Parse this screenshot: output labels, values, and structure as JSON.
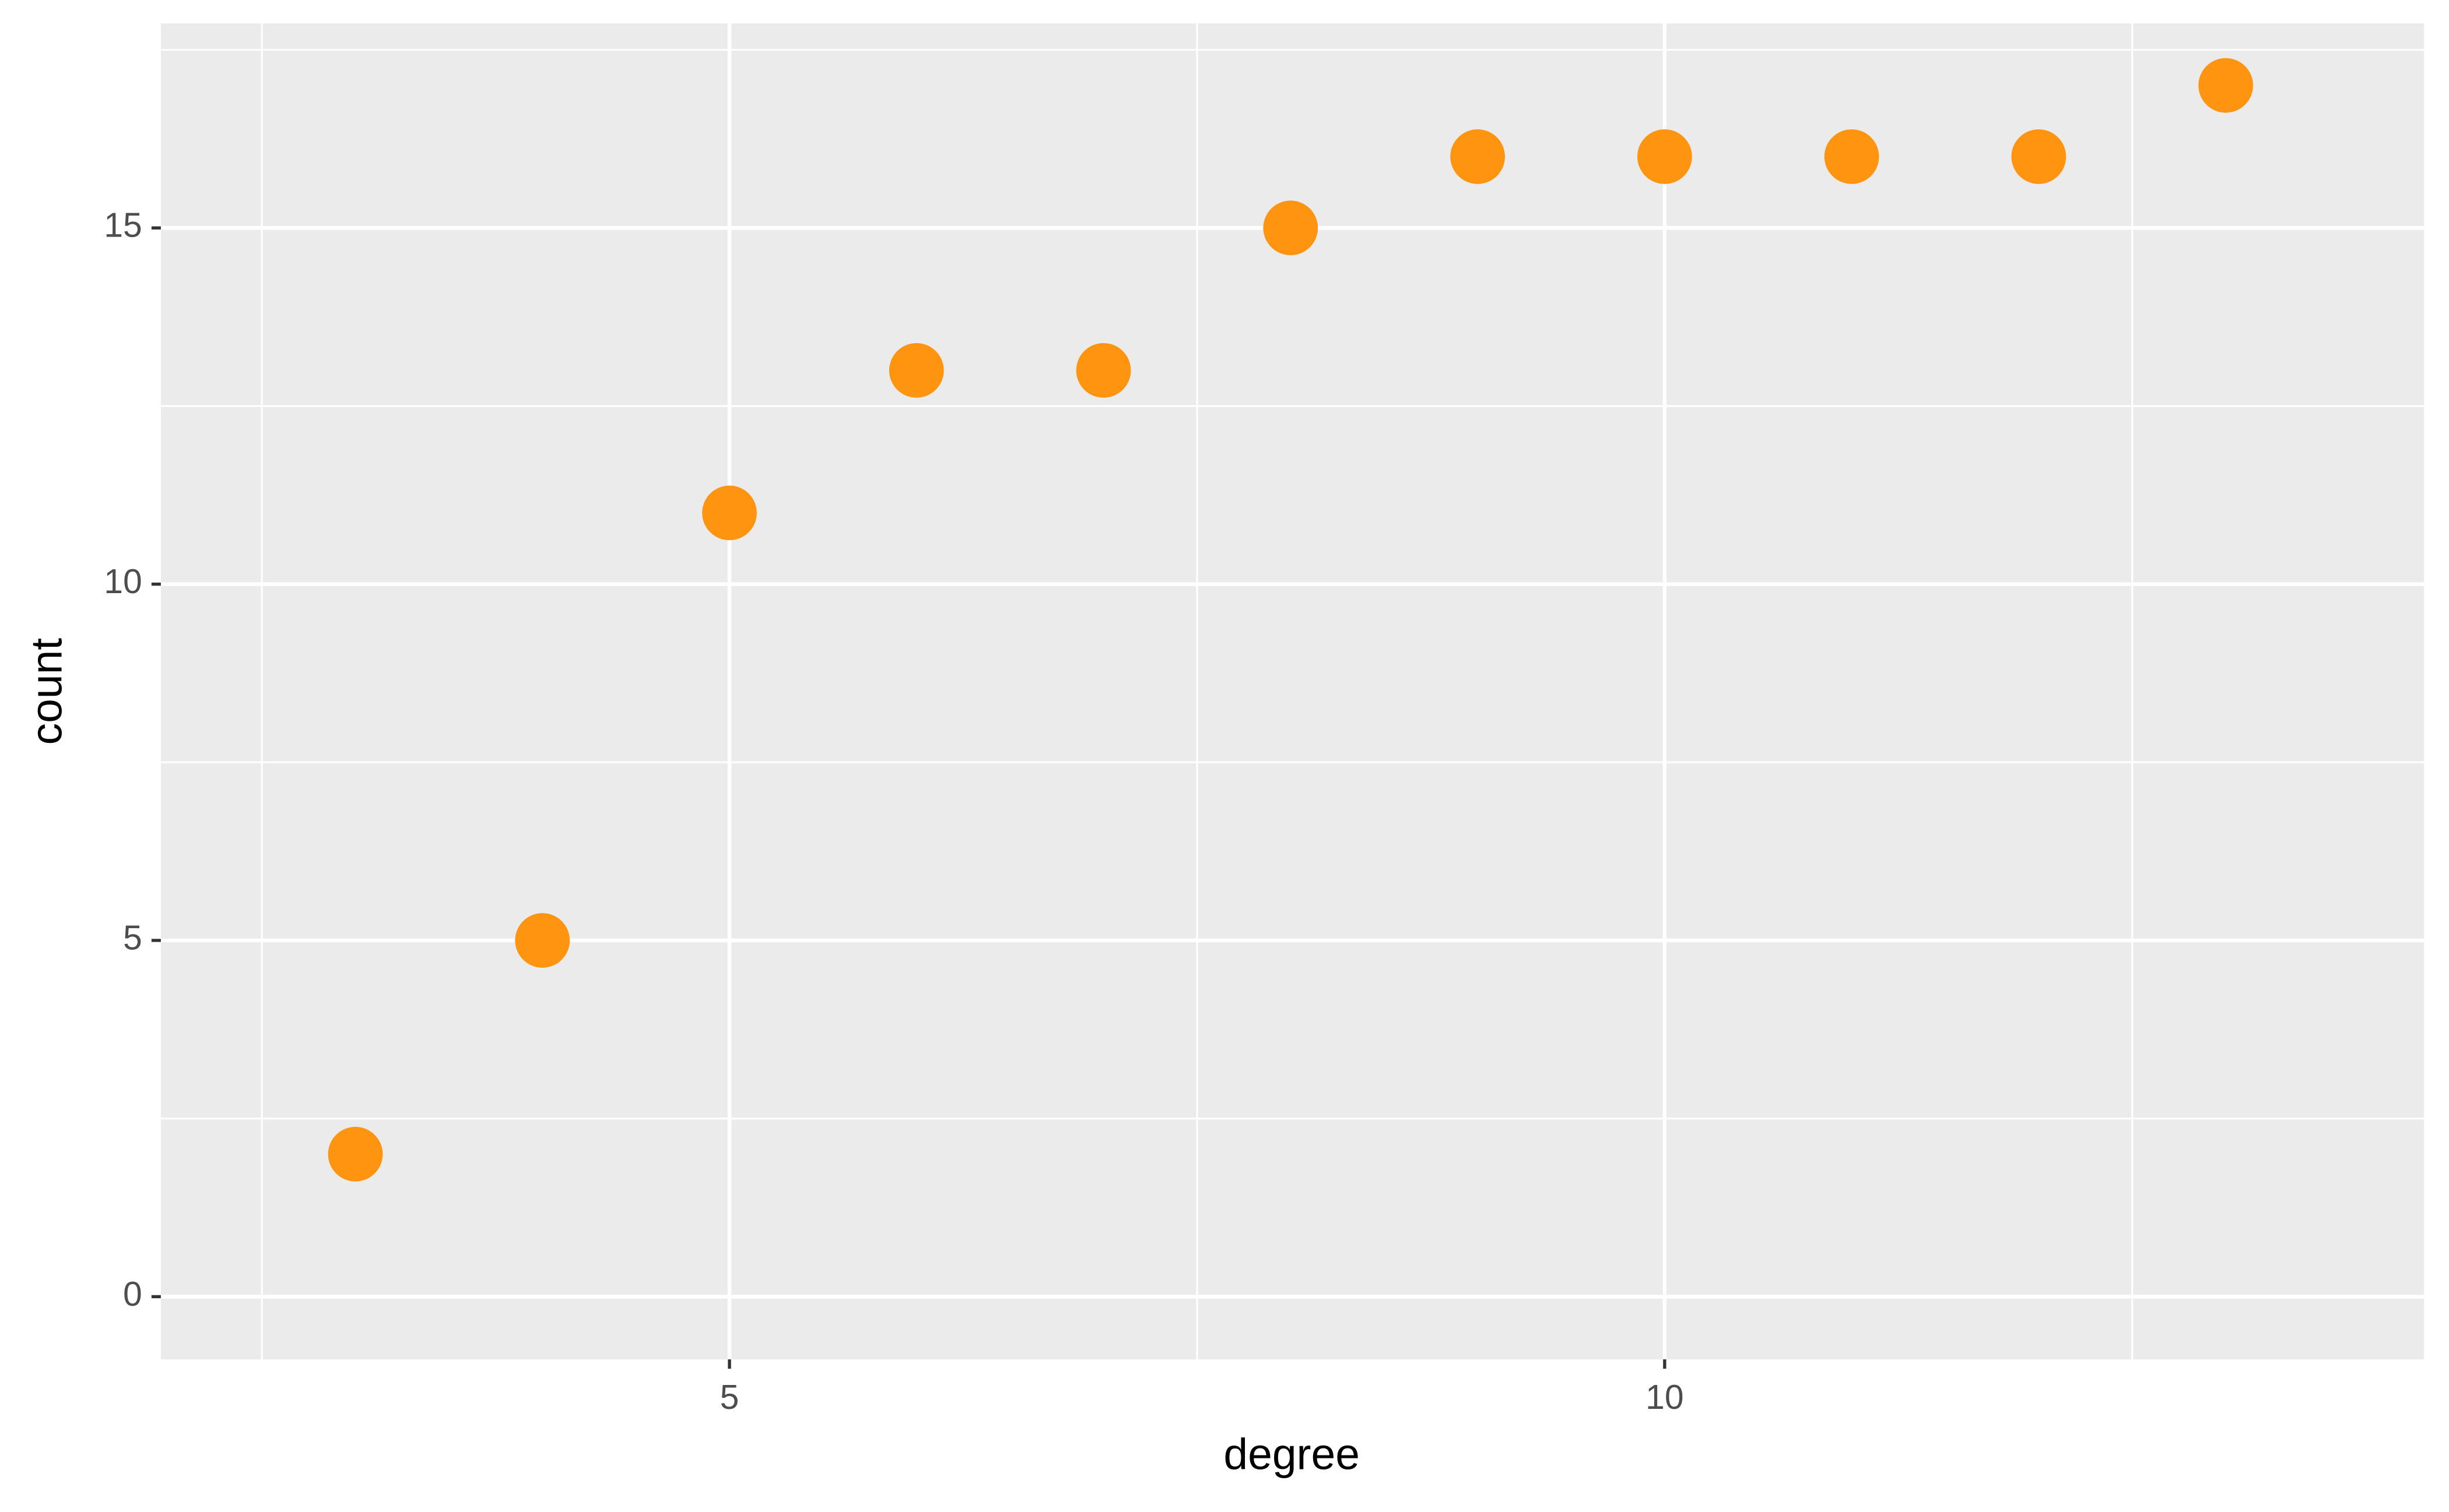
{
  "chart_data": {
    "type": "scatter",
    "x_label": "degree",
    "y_label": "count",
    "x": [
      3,
      4,
      5,
      6,
      7,
      8,
      9,
      10,
      11,
      12,
      13
    ],
    "values": [
      2,
      5,
      11,
      13,
      13,
      15,
      16,
      16,
      16,
      16,
      17
    ],
    "color": "#ff9410",
    "xlim": [
      1.96,
      14.06
    ],
    "xticks": [
      5,
      10
    ],
    "ylim": [
      -0.88,
      17.87
    ],
    "yticks": [
      0,
      5,
      10,
      15
    ],
    "grid": true
  }
}
